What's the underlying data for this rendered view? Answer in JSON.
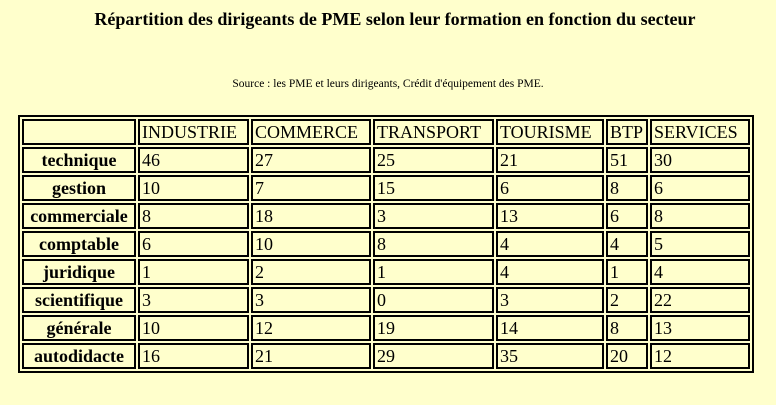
{
  "title": "Répartition des dirigeants de PME selon leur formation en fonction du secteur",
  "source": "Source : les PME et leurs dirigeants, Crédit d'équipement des PME.",
  "table": {
    "corner": "",
    "columns": [
      "INDUSTRIE",
      "COMMERCE",
      "TRANSPORT",
      "TOURISME",
      "BTP",
      "SERVICES"
    ],
    "rows": [
      {
        "label": "technique",
        "values": [
          "46",
          "27",
          "25",
          "21",
          "51",
          "30"
        ]
      },
      {
        "label": "gestion",
        "values": [
          "10",
          "7",
          "15",
          "6",
          "8",
          "6"
        ]
      },
      {
        "label": "commerciale",
        "values": [
          "8",
          "18",
          "3",
          "13",
          "6",
          "8"
        ]
      },
      {
        "label": "comptable",
        "values": [
          "6",
          "10",
          "8",
          "4",
          "4",
          "5"
        ]
      },
      {
        "label": "juridique",
        "values": [
          "1",
          "2",
          "1",
          "4",
          "1",
          "4"
        ]
      },
      {
        "label": "scientifique",
        "values": [
          "3",
          "3",
          "0",
          "3",
          "2",
          "22"
        ]
      },
      {
        "label": "générale",
        "values": [
          "10",
          "12",
          "19",
          "14",
          "8",
          "13"
        ]
      },
      {
        "label": "autodidacte",
        "values": [
          "16",
          "21",
          "29",
          "35",
          "20",
          "12"
        ]
      }
    ]
  }
}
